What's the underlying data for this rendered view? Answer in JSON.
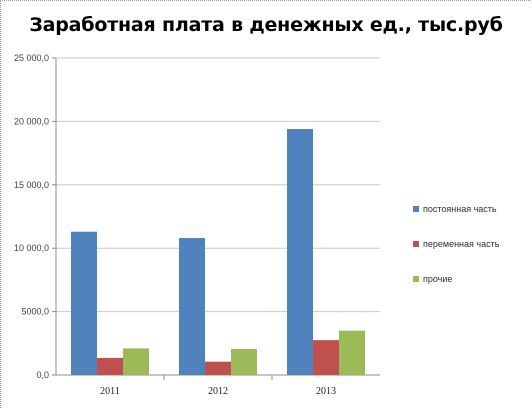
{
  "chart_data": {
    "type": "bar",
    "title": "Заработная плата в денежных ед., тыс.руб",
    "categories": [
      "2011",
      "2012",
      "2013"
    ],
    "series": [
      {
        "name": "постоянная часть",
        "color": "#4f81bd",
        "values": [
          11300,
          10800,
          19400
        ]
      },
      {
        "name": "переменная часть",
        "color": "#c0504d",
        "values": [
          1350,
          1050,
          2750
        ]
      },
      {
        "name": "прочие",
        "color": "#9bbb59",
        "values": [
          2100,
          2050,
          3500
        ]
      }
    ],
    "ylim": [
      0,
      25000
    ],
    "yticks": [
      0,
      5000,
      10000,
      15000,
      20000,
      25000
    ],
    "ytick_labels": [
      "0,0",
      "5000,0",
      "10 000,0",
      "15 000,0",
      "20 000,0",
      "25 000,0"
    ],
    "grid": true,
    "legend_position": "right"
  }
}
